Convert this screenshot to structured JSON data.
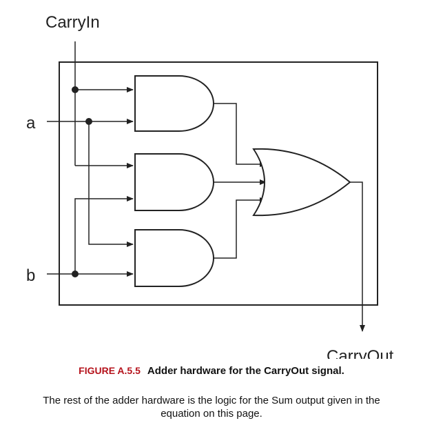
{
  "labels": {
    "carry_in": "CarryIn",
    "a": "a",
    "b": "b",
    "carry_out": "CarryOut"
  },
  "caption": {
    "figure_number": "FIGURE A.5.5",
    "title": "Adder hardware for the CarryOut signal.",
    "body": "The rest of the adder hardware is the logic for the Sum output given in the equation on this page."
  },
  "colors": {
    "figure_number": "#b5121b",
    "line": "#222222"
  }
}
